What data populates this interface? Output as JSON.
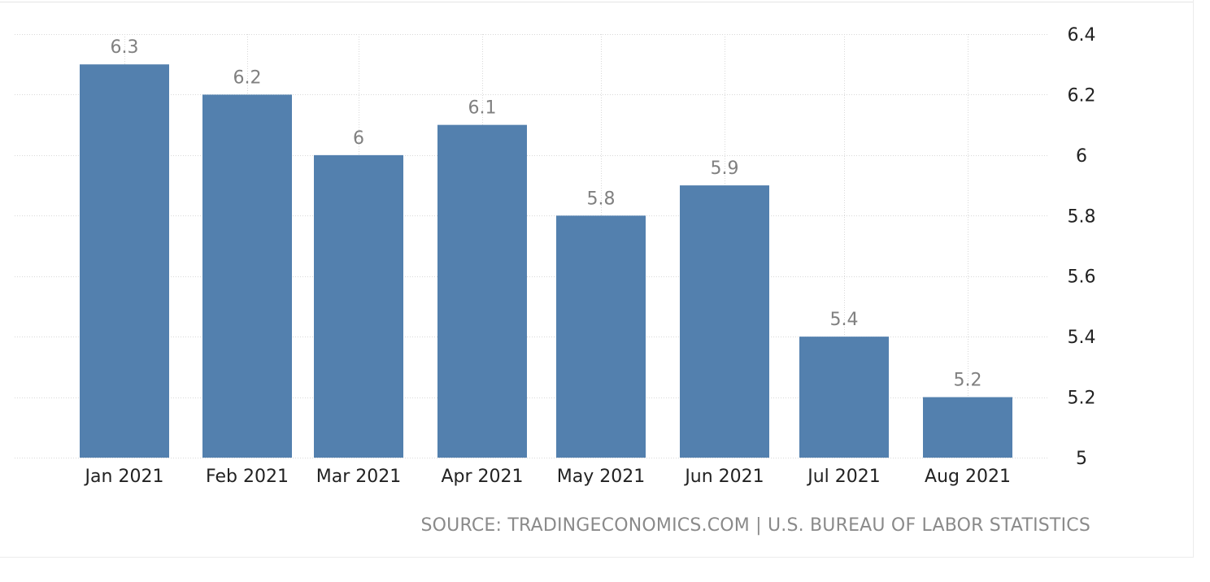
{
  "chart_data": {
    "type": "bar",
    "title": "",
    "xlabel": "",
    "ylabel": "",
    "categories": [
      "Jan 2021",
      "Feb 2021",
      "Mar 2021",
      "Apr 2021",
      "May 2021",
      "Jun 2021",
      "Jul 2021",
      "Aug 2021"
    ],
    "values": [
      6.3,
      6.2,
      6,
      6.1,
      5.8,
      5.9,
      5.4,
      5.2
    ],
    "value_labels": [
      "6.3",
      "6.2",
      "6",
      "6.1",
      "5.8",
      "5.9",
      "5.4",
      "5.2"
    ],
    "ylim": [
      5,
      6.4
    ],
    "yticks": [
      5,
      5.2,
      5.4,
      5.6,
      5.8,
      6,
      6.2,
      6.4
    ],
    "ytick_labels": [
      "5",
      "5.2",
      "5.4",
      "5.6",
      "5.8",
      "6",
      "6.2",
      "6.4"
    ],
    "y_axis_position": "right",
    "grid": true,
    "legend": "none",
    "bar_color": "#5380ae",
    "grid_color": "#d8d8d8",
    "value_label_color": "#808080",
    "tick_label_color": "#222222"
  },
  "source": "SOURCE: TRADINGECONOMICS.COM | U.S. BUREAU OF LABOR STATISTICS"
}
